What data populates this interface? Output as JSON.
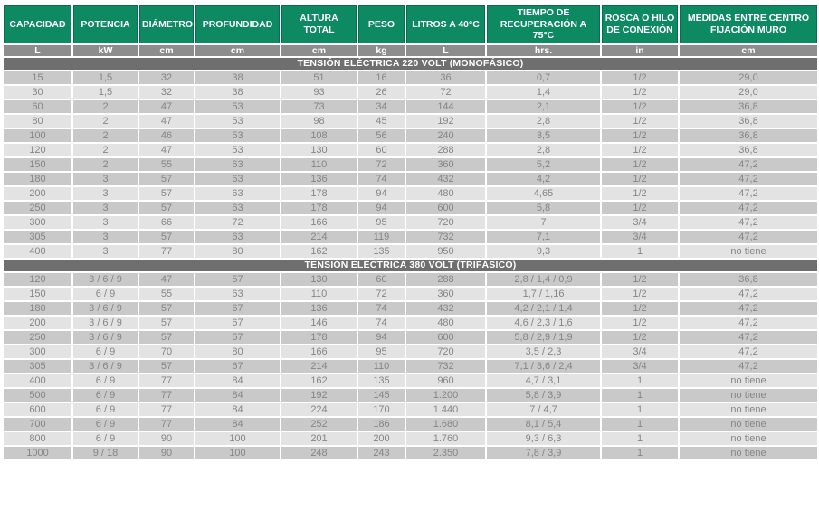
{
  "document": {
    "kind": "specification-table",
    "language": "es"
  },
  "colors": {
    "header_green": "#0e8a63",
    "header_green_border": "#0a6b4e",
    "units_gray": "#8d8d8d",
    "section_band_gray": "#6f6f6f",
    "row_dark": "#c9c9c9",
    "row_light": "#e3e3e3",
    "data_text": "#858585",
    "header_text": "#ffffff"
  },
  "table": {
    "columns": [
      {
        "label": "CAPACIDAD",
        "unit": "L"
      },
      {
        "label": "POTENCIA",
        "unit": "kW"
      },
      {
        "label": "DIÁMETRO",
        "unit": "cm"
      },
      {
        "label": "PROFUNDIDAD",
        "unit": "cm"
      },
      {
        "label": "ALTURA TOTAL",
        "unit": "cm"
      },
      {
        "label": "PESO",
        "unit": "kg"
      },
      {
        "label": "LITROS A 40°C",
        "unit": "L"
      },
      {
        "label": "TIEMPO DE RECUPERACIÓN A 75°C",
        "unit": "hrs."
      },
      {
        "label": "ROSCA O HILO DE CONEXIÓN",
        "unit": "in"
      },
      {
        "label": "MEDIDAS ENTRE CENTRO FIJACIÓN MURO",
        "unit": "cm"
      }
    ],
    "sections": [
      {
        "title": "TENSIÓN ELÉCTRICA 220 VOLT (MONOFÁSICO)",
        "row_shades": [
          "dark",
          "light",
          "dark",
          "light",
          "dark",
          "light",
          "dark",
          "dark",
          "light",
          "dark",
          "light",
          "dark",
          "light"
        ],
        "rows": [
          [
            "15",
            "1,5",
            "32",
            "38",
            "51",
            "16",
            "36",
            "0,7",
            "1/2",
            "29,0"
          ],
          [
            "30",
            "1,5",
            "32",
            "38",
            "93",
            "26",
            "72",
            "1,4",
            "1/2",
            "29,0"
          ],
          [
            "60",
            "2",
            "47",
            "53",
            "73",
            "34",
            "144",
            "2,1",
            "1/2",
            "36,8"
          ],
          [
            "80",
            "2",
            "47",
            "53",
            "98",
            "45",
            "192",
            "2,8",
            "1/2",
            "36,8"
          ],
          [
            "100",
            "2",
            "46",
            "53",
            "108",
            "56",
            "240",
            "3,5",
            "1/2",
            "36,8"
          ],
          [
            "120",
            "2",
            "47",
            "53",
            "130",
            "60",
            "288",
            "2,8",
            "1/2",
            "36,8"
          ],
          [
            "150",
            "2",
            "55",
            "63",
            "110",
            "72",
            "360",
            "5,2",
            "1/2",
            "47,2"
          ],
          [
            "180",
            "3",
            "57",
            "63",
            "136",
            "74",
            "432",
            "4,2",
            "1/2",
            "47,2"
          ],
          [
            "200",
            "3",
            "57",
            "63",
            "178",
            "94",
            "480",
            "4,65",
            "1/2",
            "47,2"
          ],
          [
            "250",
            "3",
            "57",
            "63",
            "178",
            "94",
            "600",
            "5,8",
            "1/2",
            "47,2"
          ],
          [
            "300",
            "3",
            "66",
            "72",
            "166",
            "95",
            "720",
            "7",
            "3/4",
            "47,2"
          ],
          [
            "305",
            "3",
            "57",
            "63",
            "214",
            "119",
            "732",
            "7,1",
            "3/4",
            "47,2"
          ],
          [
            "400",
            "3",
            "77",
            "80",
            "162",
            "135",
            "950",
            "9,3",
            "1",
            "no tiene"
          ]
        ]
      },
      {
        "title": "TENSIÓN ELÉCTRICA 380 VOLT (TRIFÁSICO)",
        "row_shades": [
          "dark",
          "light",
          "dark",
          "light",
          "dark",
          "light",
          "dark",
          "light",
          "dark",
          "light",
          "dark",
          "light",
          "dark"
        ],
        "rows": [
          [
            "120",
            "3 / 6 / 9",
            "47",
            "57",
            "130",
            "60",
            "288",
            "2,8 / 1,4 / 0,9",
            "1/2",
            "36,8"
          ],
          [
            "150",
            "6 / 9",
            "55",
            "63",
            "110",
            "72",
            "360",
            "1,7 / 1,16",
            "1/2",
            "47,2"
          ],
          [
            "180",
            "3 / 6 / 9",
            "57",
            "67",
            "136",
            "74",
            "432",
            "4,2 / 2,1 / 1,4",
            "1/2",
            "47,2"
          ],
          [
            "200",
            "3 / 6 / 9",
            "57",
            "67",
            "146",
            "74",
            "480",
            "4,6 / 2,3 / 1,6",
            "1/2",
            "47,2"
          ],
          [
            "250",
            "3 / 6 / 9",
            "57",
            "67",
            "178",
            "94",
            "600",
            "5,8 / 2,9 / 1,9",
            "1/2",
            "47,2"
          ],
          [
            "300",
            "6 / 9",
            "70",
            "80",
            "166",
            "95",
            "720",
            "3,5 / 2,3",
            "3/4",
            "47,2"
          ],
          [
            "305",
            "3 / 6 / 9",
            "57",
            "67",
            "214",
            "110",
            "732",
            "7,1 / 3,6 / 2,4",
            "3/4",
            "47,2"
          ],
          [
            "400",
            "6 / 9",
            "77",
            "84",
            "162",
            "135",
            "960",
            "4,7 / 3,1",
            "1",
            "no tiene"
          ],
          [
            "500",
            "6 / 9",
            "77",
            "84",
            "192",
            "145",
            "1.200",
            "5,8 / 3,9",
            "1",
            "no tiene"
          ],
          [
            "600",
            "6 / 9",
            "77",
            "84",
            "224",
            "170",
            "1.440",
            "7 / 4,7",
            "1",
            "no tiene"
          ],
          [
            "700",
            "6 / 9",
            "77",
            "84",
            "252",
            "186",
            "1.680",
            "8,1 / 5,4",
            "1",
            "no tiene"
          ],
          [
            "800",
            "6 / 9",
            "90",
            "100",
            "201",
            "200",
            "1.760",
            "9,3 / 6,3",
            "1",
            "no tiene"
          ],
          [
            "1000",
            "9 / 18",
            "90",
            "100",
            "248",
            "243",
            "2.350",
            "7,8 / 3,9",
            "1",
            "no tiene"
          ]
        ]
      }
    ]
  }
}
